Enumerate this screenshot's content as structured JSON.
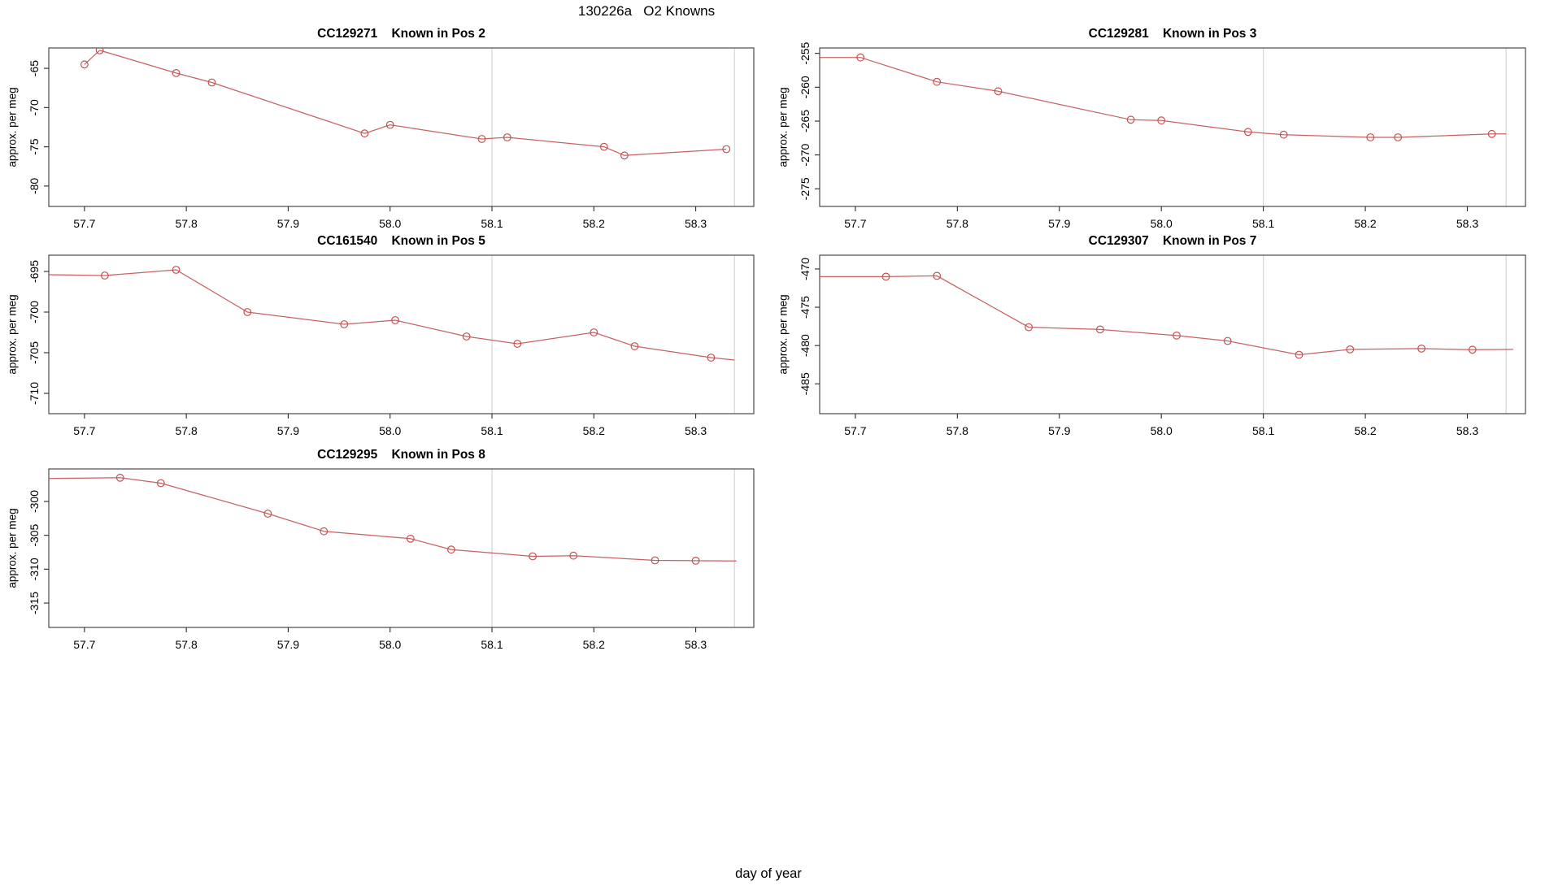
{
  "page": {
    "title": "130226a   O2 Knowns",
    "xlabel": "day of year",
    "colors": {
      "series": "#c25151",
      "vline": "#d4d4d4",
      "box": "#3a3a3a",
      "tick": "#2a2a2a",
      "text": "#000000"
    }
  },
  "chart_data": [
    {
      "type": "line",
      "title": "CC129271    Known in Pos 2",
      "ylabel": "approx. per meg",
      "xlim": [
        57.665,
        58.357
      ],
      "ylim": [
        -82.6,
        -62.4
      ],
      "x_ticks": [
        "57.7",
        "57.8",
        "57.9",
        "58.0",
        "58.1",
        "58.2",
        "58.3"
      ],
      "y_ticks": [
        -80,
        -75,
        -70,
        -65
      ],
      "vlines": [
        58.1,
        58.338
      ],
      "points": [
        [
          57.7,
          -64.5
        ],
        [
          57.715,
          -62.7
        ],
        [
          57.79,
          -65.6
        ],
        [
          57.825,
          -66.8
        ],
        [
          57.975,
          -73.3
        ],
        [
          58.0,
          -72.2
        ],
        [
          58.09,
          -74.0
        ],
        [
          58.115,
          -73.8
        ],
        [
          58.21,
          -75.0
        ],
        [
          58.23,
          -76.1
        ],
        [
          58.33,
          -75.3
        ]
      ],
      "line_start": null,
      "line_end": null
    },
    {
      "type": "line",
      "title": "CC129281    Known in Pos 3",
      "ylabel": "approx. per meg",
      "xlim": [
        57.665,
        58.357
      ],
      "ylim": [
        -277.6,
        -254.2
      ],
      "x_ticks": [
        "57.7",
        "57.8",
        "57.9",
        "58.0",
        "58.1",
        "58.2",
        "58.3"
      ],
      "y_ticks": [
        -275,
        -270,
        -265,
        -260,
        -255
      ],
      "vlines": [
        58.1,
        58.338
      ],
      "points": [
        [
          57.705,
          -255.6
        ],
        [
          57.78,
          -259.2
        ],
        [
          57.84,
          -260.6
        ],
        [
          57.97,
          -264.8
        ],
        [
          58.0,
          -264.9
        ],
        [
          58.085,
          -266.6
        ],
        [
          58.12,
          -267.0
        ],
        [
          58.205,
          -267.4
        ],
        [
          58.232,
          -267.4
        ],
        [
          58.324,
          -266.9
        ]
      ],
      "line_start": [
        57.665,
        -255.6
      ],
      "line_end": [
        58.338,
        -266.9
      ]
    },
    {
      "type": "line",
      "title": "CC161540    Known in Pos 5",
      "ylabel": "approx. per meg",
      "xlim": [
        57.665,
        58.357
      ],
      "ylim": [
        -712.5,
        -693.0
      ],
      "x_ticks": [
        "57.7",
        "57.8",
        "57.9",
        "58.0",
        "58.1",
        "58.2",
        "58.3"
      ],
      "y_ticks": [
        -710,
        -705,
        -700,
        -695
      ],
      "vlines": [
        58.1,
        58.338
      ],
      "points": [
        [
          57.72,
          -695.5
        ],
        [
          57.79,
          -694.8
        ],
        [
          57.86,
          -700.0
        ],
        [
          57.955,
          -701.5
        ],
        [
          58.005,
          -701.0
        ],
        [
          58.075,
          -703.0
        ],
        [
          58.125,
          -703.9
        ],
        [
          58.2,
          -702.5
        ],
        [
          58.24,
          -704.2
        ],
        [
          58.315,
          -705.6
        ]
      ],
      "line_start": [
        57.665,
        -695.4
      ],
      "line_end": [
        58.338,
        -705.9
      ]
    },
    {
      "type": "line",
      "title": "CC129307    Known in Pos 7",
      "ylabel": "approx. per meg",
      "xlim": [
        57.665,
        58.357
      ],
      "ylim": [
        -488.9,
        -468.2
      ],
      "x_ticks": [
        "57.7",
        "57.8",
        "57.9",
        "58.0",
        "58.1",
        "58.2",
        "58.3"
      ],
      "y_ticks": [
        -485,
        -480,
        -475,
        -470
      ],
      "vlines": [
        58.1,
        58.338
      ],
      "points": [
        [
          57.73,
          -471.0
        ],
        [
          57.78,
          -470.9
        ],
        [
          57.87,
          -477.6
        ],
        [
          57.94,
          -477.9
        ],
        [
          58.015,
          -478.7
        ],
        [
          58.065,
          -479.4
        ],
        [
          58.135,
          -481.2
        ],
        [
          58.185,
          -480.5
        ],
        [
          58.255,
          -480.4
        ],
        [
          58.305,
          -480.55
        ]
      ],
      "line_start": [
        57.665,
        -471.0
      ],
      "line_end": [
        58.345,
        -480.5
      ]
    },
    {
      "type": "line",
      "title": "CC129295    Known in Pos 8",
      "ylabel": "approx. per meg",
      "xlim": [
        57.665,
        58.357
      ],
      "ylim": [
        -318.6,
        -295.2
      ],
      "x_ticks": [
        "57.7",
        "57.8",
        "57.9",
        "58.0",
        "58.1",
        "58.2",
        "58.3"
      ],
      "y_ticks": [
        -315,
        -310,
        -305,
        -300
      ],
      "vlines": [
        58.1,
        58.338
      ],
      "points": [
        [
          57.735,
          -296.5
        ],
        [
          57.775,
          -297.3
        ],
        [
          57.88,
          -301.8
        ],
        [
          57.935,
          -304.4
        ],
        [
          58.02,
          -305.5
        ],
        [
          58.06,
          -307.1
        ],
        [
          58.14,
          -308.1
        ],
        [
          58.18,
          -308.0
        ],
        [
          58.26,
          -308.7
        ],
        [
          58.3,
          -308.75
        ]
      ],
      "line_start": [
        57.665,
        -296.6
      ],
      "line_end": [
        58.34,
        -308.8
      ]
    }
  ]
}
